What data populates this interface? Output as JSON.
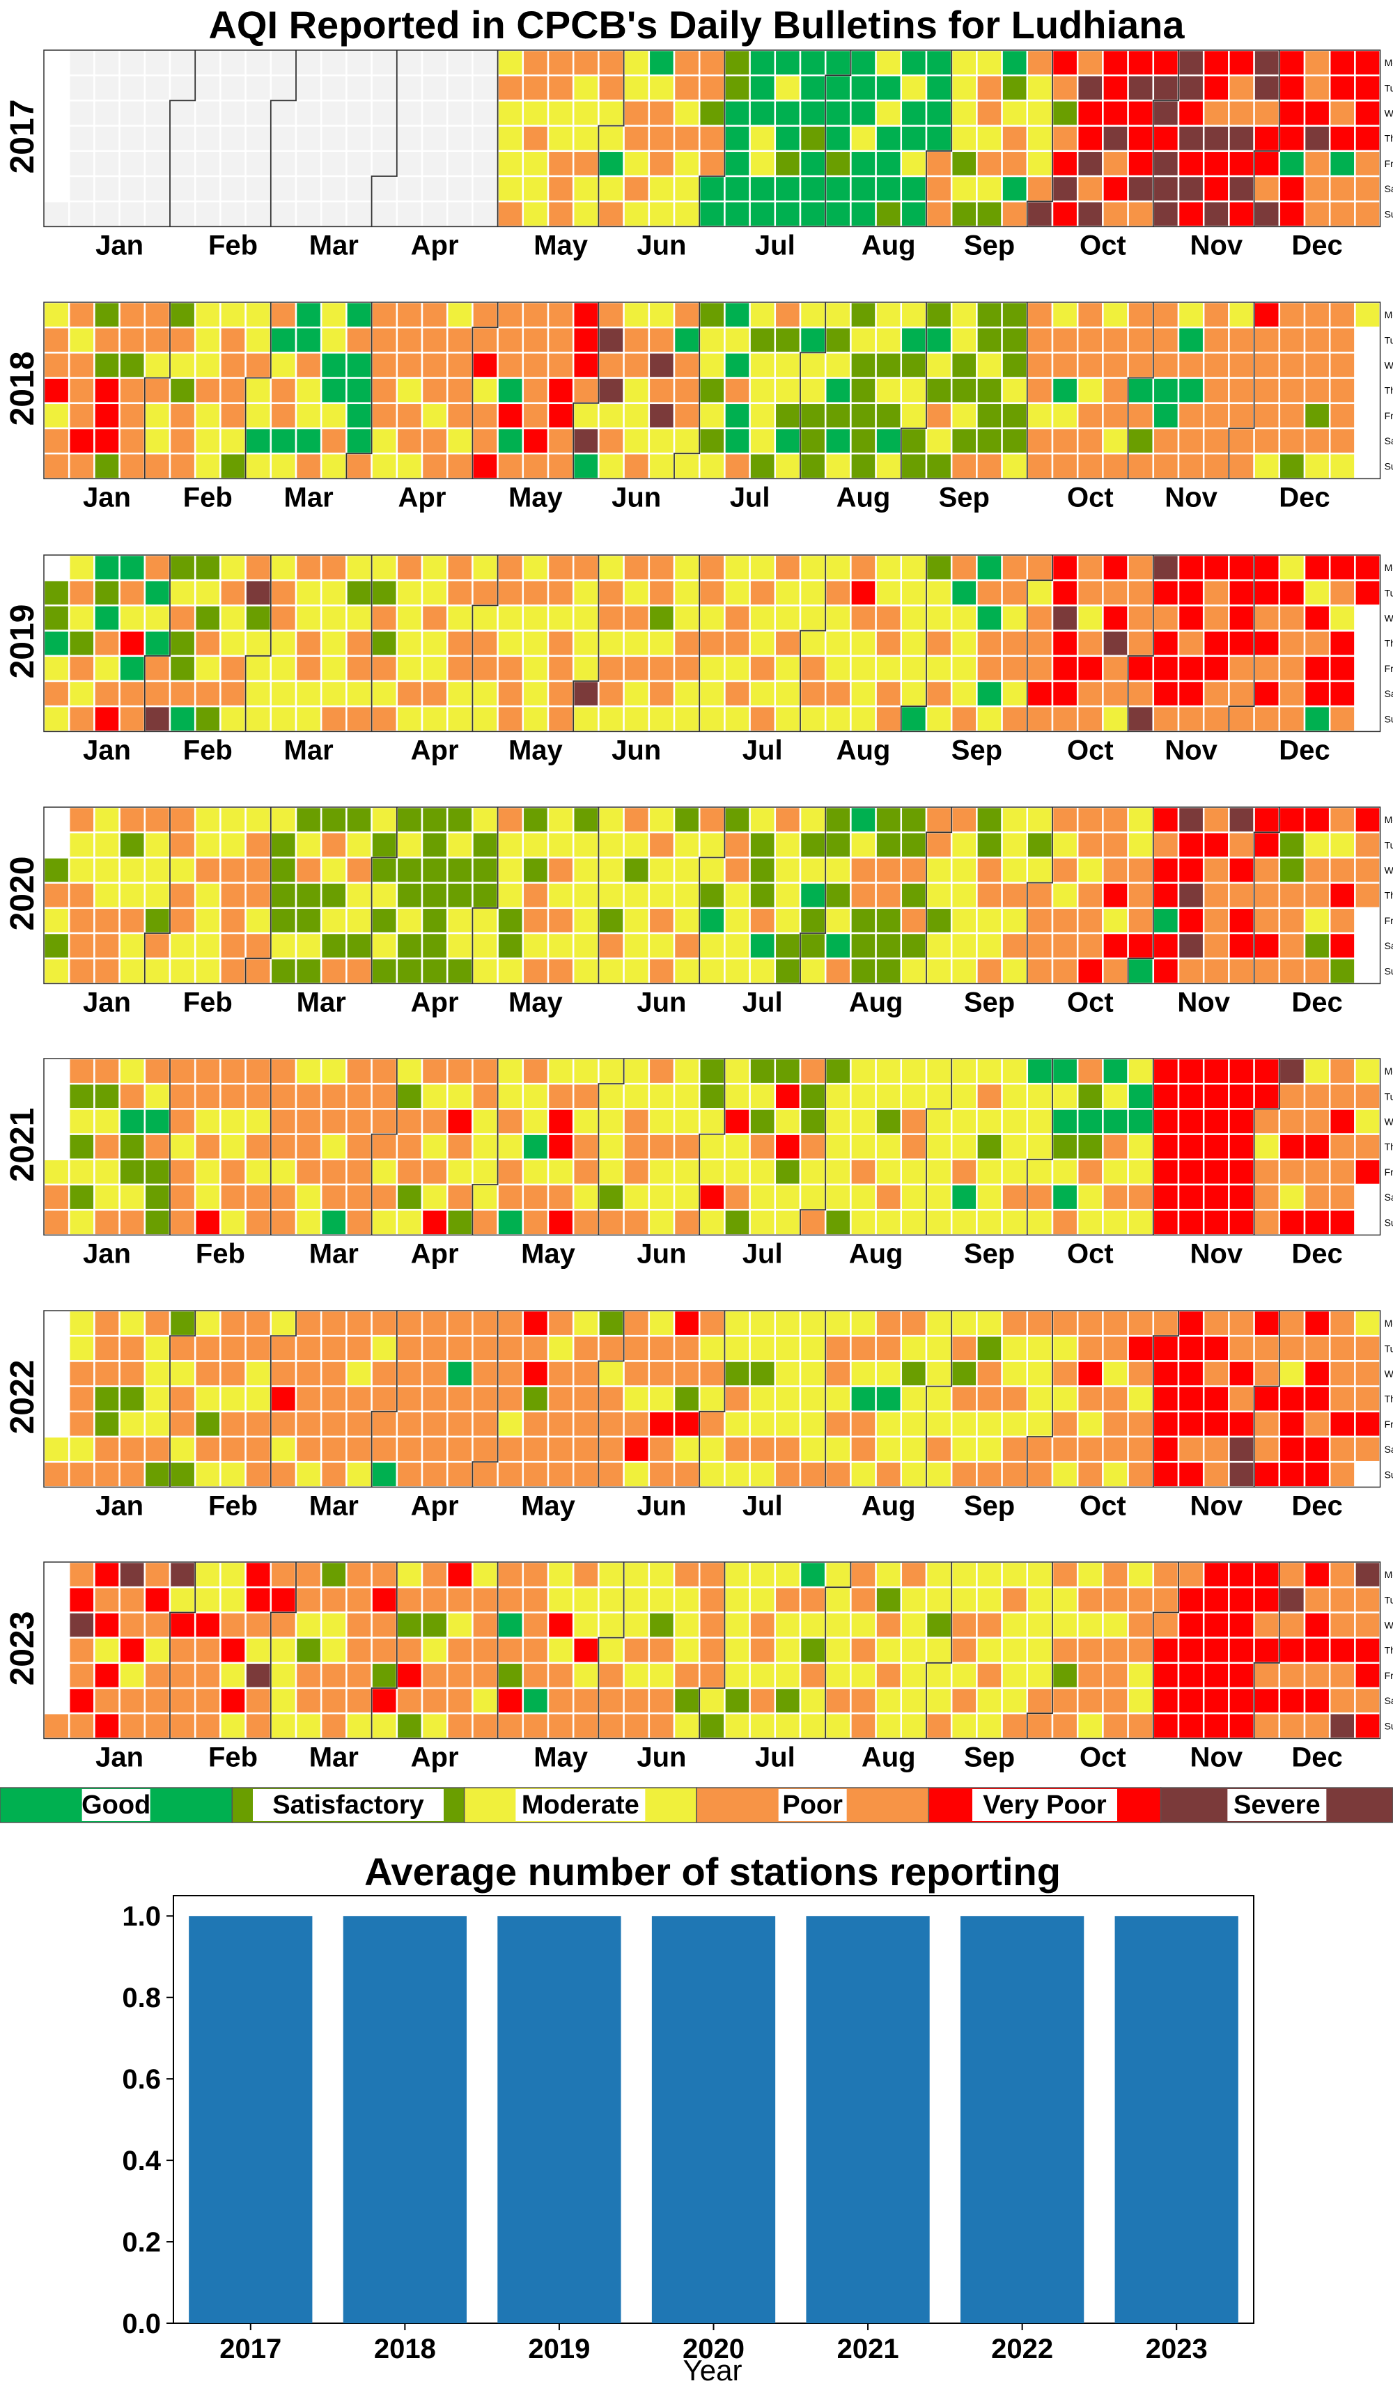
{
  "title": "AQI Reported in CPCB's Daily Bulletins for Ludhiana",
  "chart_data": [
    {
      "type": "heatmap",
      "subtype": "calendar",
      "title": "AQI Reported in CPCB's Daily Bulletins for Ludhiana",
      "years": [
        "2017",
        "2018",
        "2019",
        "2020",
        "2021",
        "2022",
        "2023"
      ],
      "month_labels": [
        "Jan",
        "Feb",
        "Mar",
        "Apr",
        "May",
        "Jun",
        "Jul",
        "Aug",
        "Sep",
        "Oct",
        "Nov",
        "Dec"
      ],
      "weekday_labels": [
        "Mon",
        "Tue",
        "Wed",
        "Thu",
        "Fri",
        "Sat",
        "Sun"
      ],
      "categories": [
        "Good",
        "Satisfactory",
        "Moderate",
        "Poor",
        "Very Poor",
        "Severe"
      ],
      "no_data_color": "#f2f2f2",
      "note": "Each cell is one day; value = index into categories (0=Good .. 5=Severe). Values estimated from the colour pattern of the figure.",
      "approx_category_runs": [
        {
          "year": "2017",
          "runs": [
            [
              "Jan-01",
              "Apr-30",
              "no data"
            ],
            [
              "May-01",
              "Jun-20",
              "Moderate/Poor"
            ],
            [
              "Jun-21",
              "Aug-31",
              "Good/Satisfactory"
            ],
            [
              "Sep-01",
              "Sep-30",
              "Moderate/Poor"
            ],
            [
              "Oct-01",
              "Oct-15",
              "Poor/Very Poor"
            ],
            [
              "Oct-16",
              "Nov-20",
              "Very Poor/Severe"
            ],
            [
              "Nov-21",
              "Dec-31",
              "Poor/Very Poor"
            ]
          ]
        },
        {
          "year": "2018",
          "runs": [
            [
              "Jan-01",
              "Mar-10",
              "Poor/Moderate"
            ],
            [
              "Mar-11",
              "Mar-31",
              "Good/Moderate"
            ],
            [
              "Apr-01",
              "May-31",
              "Poor/Very Poor"
            ],
            [
              "Jun-01",
              "Jul-15",
              "Poor/Moderate"
            ],
            [
              "Jul-16",
              "Sep-30",
              "Moderate/Satisfactory"
            ],
            [
              "Oct-01",
              "Dec-31",
              "Poor"
            ]
          ]
        },
        {
          "year": "2019",
          "runs": [
            [
              "Jan-01",
              "Sep-30",
              "Moderate/Poor"
            ],
            [
              "Oct-01",
              "Oct-31",
              "Poor/Very Poor"
            ],
            [
              "Nov-01",
              "Nov-10",
              "Very Poor"
            ],
            [
              "Nov-11",
              "Dec-31",
              "Poor/Very Poor"
            ]
          ]
        },
        {
          "year": "2020",
          "runs": [
            [
              "Jan-01",
              "Mar-10",
              "Moderate/Poor"
            ],
            [
              "Mar-11",
              "Apr-30",
              "Satisfactory"
            ],
            [
              "May-01",
              "Sep-30",
              "Moderate/Satisfactory"
            ],
            [
              "Oct-01",
              "Nov-20",
              "Poor/Very Poor"
            ],
            [
              "Nov-21",
              "Dec-31",
              "Poor/Very Poor"
            ]
          ]
        },
        {
          "year": "2021",
          "runs": [
            [
              "Jan-01",
              "Apr-30",
              "Poor/Moderate"
            ],
            [
              "May-01",
              "Sep-30",
              "Moderate"
            ],
            [
              "Oct-01",
              "Oct-31",
              "Poor/Good"
            ],
            [
              "Nov-01",
              "Nov-30",
              "Very Poor"
            ],
            [
              "Dec-01",
              "Dec-31",
              "Poor/Very Poor"
            ]
          ]
        },
        {
          "year": "2022",
          "runs": [
            [
              "Jan-01",
              "Jun-15",
              "Poor"
            ],
            [
              "Jun-16",
              "Sep-30",
              "Moderate"
            ],
            [
              "Oct-01",
              "Oct-31",
              "Poor"
            ],
            [
              "Nov-01",
              "Dec-31",
              "Very Poor/Poor"
            ]
          ]
        },
        {
          "year": "2023",
          "runs": [
            [
              "Jan-01",
              "Feb-28",
              "Poor/Very Poor"
            ],
            [
              "Mar-01",
              "Jun-30",
              "Poor/Moderate"
            ],
            [
              "Jul-01",
              "Sep-30",
              "Moderate"
            ],
            [
              "Oct-01",
              "Oct-31",
              "Poor/Moderate"
            ],
            [
              "Nov-01",
              "Nov-30",
              "Very Poor"
            ],
            [
              "Dec-01",
              "Dec-31",
              "Poor/Very Poor"
            ]
          ]
        }
      ]
    },
    {
      "type": "bar",
      "title": "Average number of stations reporting",
      "categories": [
        "2017",
        "2018",
        "2019",
        "2020",
        "2021",
        "2022",
        "2023"
      ],
      "values": [
        1.0,
        1.0,
        1.0,
        1.0,
        1.0,
        1.0,
        1.0
      ],
      "xlabel": "Year",
      "ylabel": "",
      "ylim": [
        0,
        1.05
      ],
      "yticks": [
        "0.0",
        "0.2",
        "0.4",
        "0.6",
        "0.8",
        "1.0"
      ],
      "grid": false,
      "bar_color": "#1f77b4"
    }
  ],
  "colors": {
    "Good": "#00b050",
    "Satisfactory": "#6a9e00",
    "Moderate": "#f0f03c",
    "Poor": "#f79446",
    "Very Poor": "#ff0000",
    "Severe": "#7b3a3a",
    "no_data": "#f2f2f2",
    "bar": "#1f77b4"
  }
}
